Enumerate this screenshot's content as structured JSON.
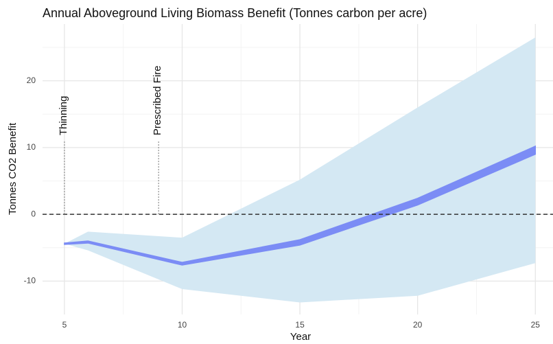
{
  "chart_data": {
    "type": "band",
    "title": "Annual Aboveground Living Biomass Benefit (Tonnes carbon per acre)",
    "xlabel": "Year",
    "ylabel": "Tonnes CO2 Benefit",
    "x": [
      5,
      6,
      10,
      15,
      20,
      25
    ],
    "bands": [
      {
        "color": "#d4e8f3",
        "upper": [
          -4.4,
          -2.6,
          -3.5,
          5.2,
          16,
          26.5
        ],
        "lower": [
          -4.4,
          -5.4,
          -11.2,
          -13.2,
          -12.2,
          -7.3
        ]
      },
      {
        "color": "#7b8cf5",
        "upper": [
          -4.3,
          -4.0,
          -7.2,
          -3.8,
          2.4,
          10.2
        ],
        "lower": [
          -4.5,
          -4.3,
          -7.6,
          -4.6,
          1.4,
          9.0
        ]
      }
    ],
    "hline": 0,
    "annotations": [
      {
        "x": 5,
        "y": 11,
        "text": "Thinning"
      },
      {
        "x": 9,
        "y": 11,
        "text": "Prescribed Fire"
      }
    ],
    "xlim": [
      4.07,
      25.75
    ],
    "ylim": [
      -15,
      28.5
    ],
    "xticks": [
      5,
      10,
      15,
      20,
      25
    ],
    "yticks": [
      -10,
      0,
      10,
      20
    ],
    "xminor": [
      7.5,
      12.5,
      17.5,
      22.5
    ],
    "yminor": [
      -5,
      5,
      15,
      25
    ],
    "grid": true
  }
}
